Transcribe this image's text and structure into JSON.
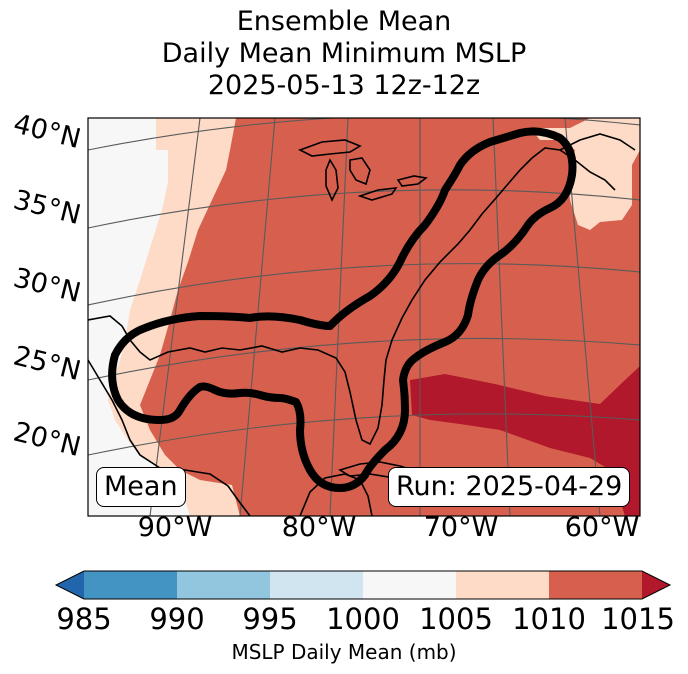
{
  "title": {
    "line1": "Ensemble Mean",
    "line2": "Daily Mean Minimum MSLP",
    "line3": "2025-05-13 12z-12z"
  },
  "map": {
    "lat_labels": [
      "40°N",
      "35°N",
      "30°N",
      "25°N",
      "20°N"
    ],
    "lon_labels": [
      "90°W",
      "80°W",
      "70°W",
      "60°W"
    ],
    "field_colors": {
      "bin_1000_1005": "#f7f7f7",
      "bin_1005_1010": "#fddbc7",
      "bin_1010_1015": "#d6604d",
      "bin_above_1015": "#b2182b"
    },
    "contour_color": "#000000",
    "left_label": "Mean",
    "right_label": "Run: 2025-04-29"
  },
  "colorbar": {
    "ticks": [
      "985",
      "990",
      "995",
      "1000",
      "1005",
      "1010",
      "1015"
    ],
    "colors": [
      "#2166ac",
      "#4393c3",
      "#92c5de",
      "#d1e5f0",
      "#f7f7f7",
      "#fddbc7",
      "#d6604d",
      "#b2182b"
    ],
    "label": "MSLP Daily Mean (mb)"
  }
}
